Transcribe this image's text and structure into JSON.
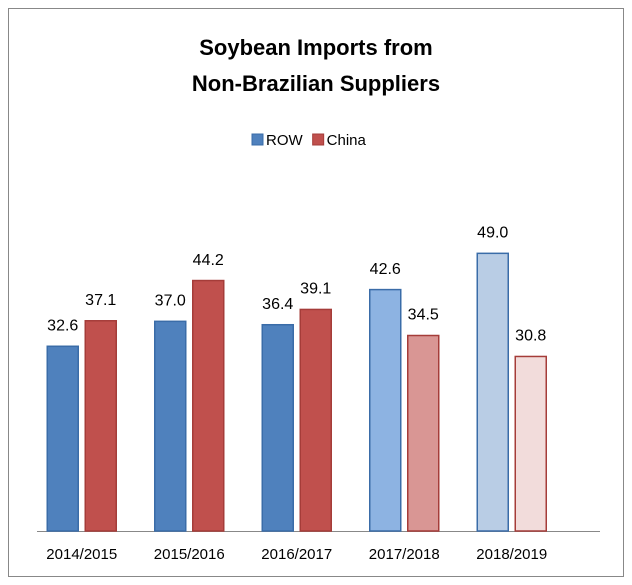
{
  "chart_data": {
    "type": "bar",
    "title": [
      "Soybean Imports from",
      "Non-Brazilian Suppliers"
    ],
    "categories": [
      "2014/2015",
      "2015/2016",
      "2016/2017",
      "2017/2018",
      "2018/2019"
    ],
    "series": [
      {
        "name": "ROW",
        "color": "#4f81bd",
        "stroke": "#3a6ca8",
        "colors": [
          "#4f81bd",
          "#4f81bd",
          "#4f81bd",
          "#8db3e2",
          "#b9cde5"
        ],
        "values": [
          32.6,
          37.0,
          36.4,
          42.6,
          49.0
        ],
        "value_labels": [
          "32.6",
          "37.0",
          "36.4",
          "42.6",
          "49.0"
        ]
      },
      {
        "name": "China",
        "color": "#c0504d",
        "stroke": "#a53c39",
        "colors": [
          "#c0504d",
          "#c0504d",
          "#c0504d",
          "#d99694",
          "#f2dcdb"
        ],
        "values": [
          37.1,
          44.2,
          39.1,
          34.5,
          30.8
        ],
        "value_labels": [
          "37.1",
          "44.2",
          "39.1",
          "34.5",
          "30.8"
        ]
      }
    ],
    "ylim": [
      0,
      60
    ],
    "legend": "top"
  }
}
